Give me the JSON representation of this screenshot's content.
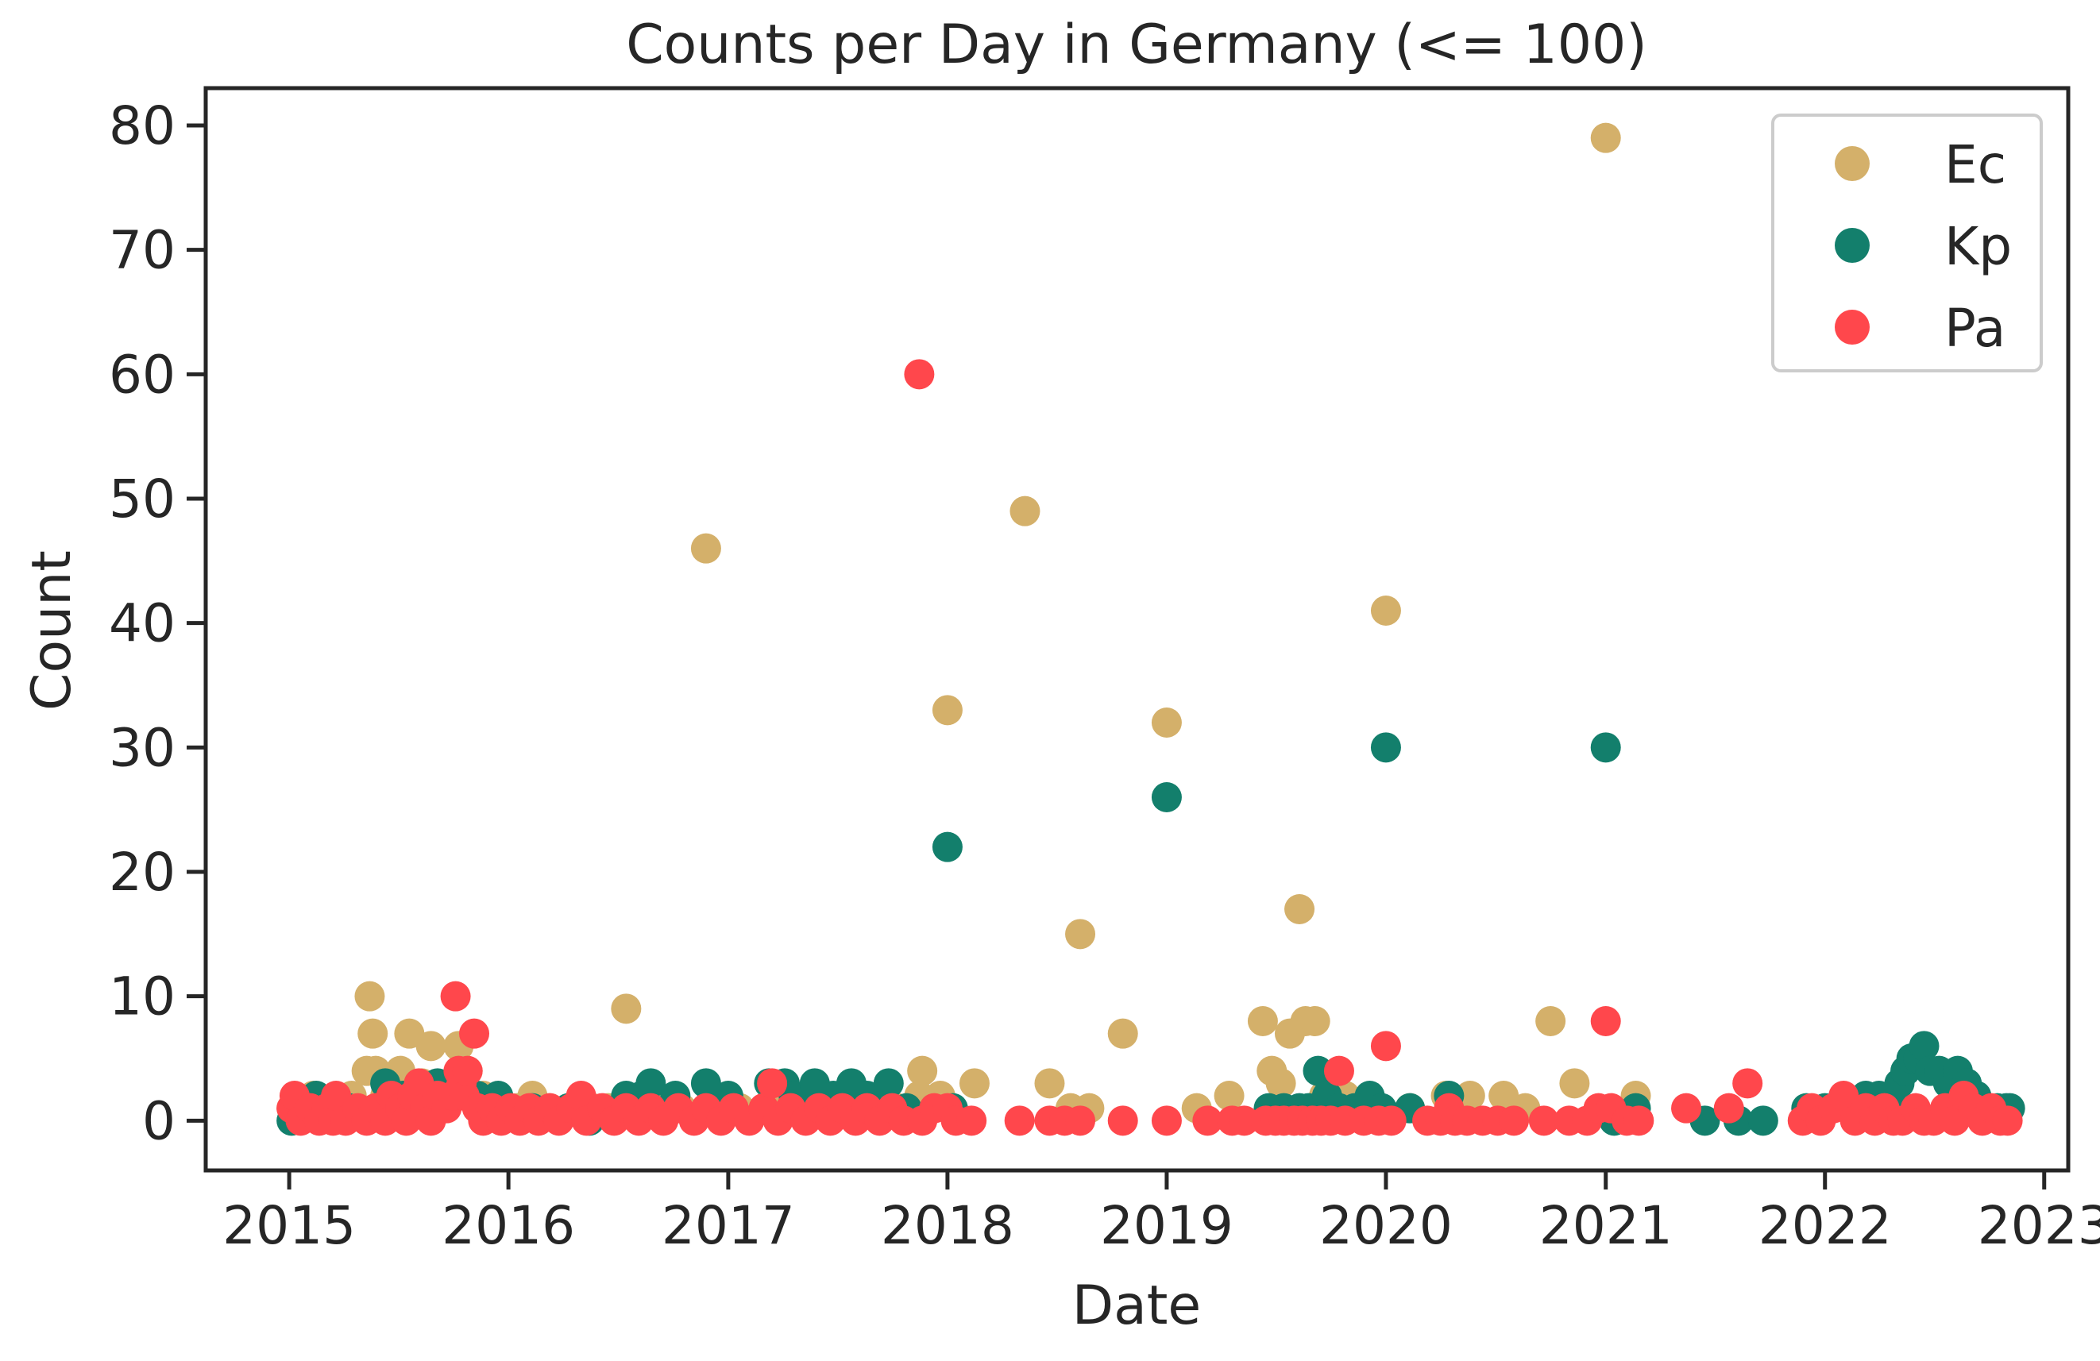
{
  "chart_data": {
    "type": "scatter",
    "title": "Counts per Day in Germany (<= 100)",
    "xlabel": "Date",
    "ylabel": "Count",
    "xlim": [
      "2014-08-15",
      "2023-02-10"
    ],
    "ylim": [
      -4,
      83
    ],
    "x_ticks": [
      "2015",
      "2016",
      "2017",
      "2018",
      "2019",
      "2020",
      "2021",
      "2022",
      "2023"
    ],
    "y_ticks": [
      0,
      10,
      20,
      30,
      40,
      50,
      60,
      70,
      80
    ],
    "grid": false,
    "legend_position": "top-right",
    "series": [
      {
        "name": "Ec",
        "color": "#d4b06a",
        "points": [
          [
            "2015-01-05",
            1
          ],
          [
            "2015-02-10",
            2
          ],
          [
            "2015-03-20",
            1
          ],
          [
            "2015-04-15",
            2
          ],
          [
            "2015-05-10",
            4
          ],
          [
            "2015-05-15",
            10
          ],
          [
            "2015-05-20",
            7
          ],
          [
            "2015-05-25",
            4
          ],
          [
            "2015-06-10",
            2
          ],
          [
            "2015-07-05",
            4
          ],
          [
            "2015-07-20",
            7
          ],
          [
            "2015-08-10",
            3
          ],
          [
            "2015-08-25",
            6
          ],
          [
            "2015-09-15",
            2
          ],
          [
            "2015-10-10",
            6
          ],
          [
            "2015-10-25",
            4
          ],
          [
            "2015-11-20",
            2
          ],
          [
            "2015-12-20",
            1
          ],
          [
            "2016-01-15",
            1
          ],
          [
            "2016-02-10",
            2
          ],
          [
            "2016-03-10",
            1
          ],
          [
            "2016-04-20",
            1
          ],
          [
            "2016-05-20",
            1
          ],
          [
            "2016-06-15",
            1
          ],
          [
            "2016-07-15",
            9
          ],
          [
            "2016-09-10",
            1
          ],
          [
            "2016-10-15",
            1
          ],
          [
            "2016-11-25",
            46
          ],
          [
            "2017-01-20",
            1
          ],
          [
            "2017-03-10",
            1
          ],
          [
            "2017-04-20",
            1
          ],
          [
            "2017-05-25",
            1
          ],
          [
            "2017-07-05",
            2
          ],
          [
            "2017-08-20",
            1
          ],
          [
            "2017-10-10",
            1
          ],
          [
            "2017-11-15",
            2
          ],
          [
            "2017-11-20",
            4
          ],
          [
            "2017-12-20",
            2
          ],
          [
            "2018-01-01",
            33
          ],
          [
            "2018-02-15",
            3
          ],
          [
            "2018-05-10",
            49
          ],
          [
            "2018-06-20",
            3
          ],
          [
            "2018-07-25",
            1
          ],
          [
            "2018-08-10",
            15
          ],
          [
            "2018-08-25",
            1
          ],
          [
            "2018-10-20",
            7
          ],
          [
            "2019-01-01",
            32
          ],
          [
            "2019-02-20",
            1
          ],
          [
            "2019-04-15",
            2
          ],
          [
            "2019-06-10",
            8
          ],
          [
            "2019-06-25",
            4
          ],
          [
            "2019-07-10",
            3
          ],
          [
            "2019-07-25",
            7
          ],
          [
            "2019-08-10",
            17
          ],
          [
            "2019-08-20",
            8
          ],
          [
            "2019-09-05",
            8
          ],
          [
            "2019-09-20",
            2
          ],
          [
            "2019-10-25",
            2
          ],
          [
            "2019-11-20",
            1
          ],
          [
            "2020-01-01",
            41
          ],
          [
            "2020-02-10",
            1
          ],
          [
            "2020-04-10",
            2
          ],
          [
            "2020-05-20",
            2
          ],
          [
            "2020-07-15",
            2
          ],
          [
            "2020-08-20",
            1
          ],
          [
            "2020-10-01",
            8
          ],
          [
            "2020-11-10",
            3
          ],
          [
            "2021-01-01",
            79
          ],
          [
            "2021-02-20",
            2
          ]
        ]
      },
      {
        "name": "Kp",
        "color": "#137f6c",
        "points": [
          [
            "2015-01-05",
            0
          ],
          [
            "2015-01-20",
            1
          ],
          [
            "2015-02-15",
            2
          ],
          [
            "2015-04-10",
            1
          ],
          [
            "2015-06-10",
            3
          ],
          [
            "2015-07-10",
            2
          ],
          [
            "2015-08-10",
            2
          ],
          [
            "2015-09-05",
            3
          ],
          [
            "2015-10-10",
            3
          ],
          [
            "2015-11-10",
            2
          ],
          [
            "2015-12-15",
            2
          ],
          [
            "2016-02-10",
            1
          ],
          [
            "2016-04-10",
            1
          ],
          [
            "2016-05-15",
            0
          ],
          [
            "2016-07-15",
            2
          ],
          [
            "2016-08-10",
            2
          ],
          [
            "2016-08-25",
            3
          ],
          [
            "2016-10-05",
            2
          ],
          [
            "2016-11-25",
            3
          ],
          [
            "2017-01-01",
            2
          ],
          [
            "2017-03-10",
            3
          ],
          [
            "2017-04-05",
            3
          ],
          [
            "2017-04-20",
            2
          ],
          [
            "2017-05-25",
            3
          ],
          [
            "2017-06-25",
            2
          ],
          [
            "2017-07-25",
            3
          ],
          [
            "2017-08-20",
            2
          ],
          [
            "2017-09-25",
            3
          ],
          [
            "2017-10-25",
            1
          ],
          [
            "2018-01-01",
            22
          ],
          [
            "2018-01-10",
            1
          ],
          [
            "2019-01-01",
            26
          ],
          [
            "2019-06-20",
            1
          ],
          [
            "2019-07-15",
            1
          ],
          [
            "2019-08-10",
            1
          ],
          [
            "2019-08-25",
            1
          ],
          [
            "2019-09-10",
            4
          ],
          [
            "2019-09-25",
            2
          ],
          [
            "2019-10-15",
            1
          ],
          [
            "2019-11-10",
            1
          ],
          [
            "2019-12-05",
            2
          ],
          [
            "2019-12-25",
            1
          ],
          [
            "2020-01-01",
            30
          ],
          [
            "2020-02-10",
            1
          ],
          [
            "2020-04-15",
            2
          ],
          [
            "2021-01-01",
            30
          ],
          [
            "2021-01-15",
            0
          ],
          [
            "2021-02-20",
            1
          ],
          [
            "2021-06-15",
            0
          ],
          [
            "2021-08-10",
            0
          ],
          [
            "2021-09-20",
            0
          ],
          [
            "2021-12-01",
            1
          ],
          [
            "2022-01-01",
            1
          ],
          [
            "2022-02-10",
            1
          ],
          [
            "2022-03-10",
            2
          ],
          [
            "2022-04-01",
            2
          ],
          [
            "2022-04-20",
            2
          ],
          [
            "2022-05-05",
            3
          ],
          [
            "2022-05-15",
            4
          ],
          [
            "2022-05-25",
            5
          ],
          [
            "2022-06-05",
            5
          ],
          [
            "2022-06-15",
            6
          ],
          [
            "2022-06-25",
            4
          ],
          [
            "2022-07-10",
            4
          ],
          [
            "2022-07-25",
            3
          ],
          [
            "2022-08-10",
            4
          ],
          [
            "2022-08-25",
            3
          ],
          [
            "2022-09-10",
            2
          ],
          [
            "2022-09-25",
            1
          ],
          [
            "2022-10-15",
            1
          ],
          [
            "2022-10-30",
            1
          ],
          [
            "2022-11-05",
            1
          ]
        ]
      },
      {
        "name": "Pa",
        "color": "#ff474c",
        "points": [
          [
            "2015-01-05",
            1
          ],
          [
            "2015-01-10",
            2
          ],
          [
            "2015-01-20",
            0
          ],
          [
            "2015-02-05",
            1
          ],
          [
            "2015-02-20",
            0
          ],
          [
            "2015-03-05",
            1
          ],
          [
            "2015-03-15",
            0
          ],
          [
            "2015-03-20",
            2
          ],
          [
            "2015-04-05",
            0
          ],
          [
            "2015-04-25",
            1
          ],
          [
            "2015-05-10",
            0
          ],
          [
            "2015-05-25",
            1
          ],
          [
            "2015-06-10",
            0
          ],
          [
            "2015-06-20",
            2
          ],
          [
            "2015-07-05",
            1
          ],
          [
            "2015-07-15",
            0
          ],
          [
            "2015-07-25",
            2
          ],
          [
            "2015-08-05",
            3
          ],
          [
            "2015-08-15",
            1
          ],
          [
            "2015-08-25",
            0
          ],
          [
            "2015-09-05",
            2
          ],
          [
            "2015-09-20",
            1
          ],
          [
            "2015-10-01",
            2
          ],
          [
            "2015-10-05",
            10
          ],
          [
            "2015-10-10",
            4
          ],
          [
            "2015-10-15",
            3
          ],
          [
            "2015-10-20",
            2
          ],
          [
            "2015-10-25",
            4
          ],
          [
            "2015-11-05",
            7
          ],
          [
            "2015-11-10",
            1
          ],
          [
            "2015-11-20",
            0
          ],
          [
            "2015-12-05",
            1
          ],
          [
            "2015-12-20",
            0
          ],
          [
            "2016-01-05",
            1
          ],
          [
            "2016-01-20",
            0
          ],
          [
            "2016-02-05",
            1
          ],
          [
            "2016-02-20",
            0
          ],
          [
            "2016-03-10",
            1
          ],
          [
            "2016-03-25",
            0
          ],
          [
            "2016-04-15",
            1
          ],
          [
            "2016-05-01",
            2
          ],
          [
            "2016-05-10",
            0
          ],
          [
            "2016-06-05",
            1
          ],
          [
            "2016-06-25",
            0
          ],
          [
            "2016-07-15",
            1
          ],
          [
            "2016-08-05",
            0
          ],
          [
            "2016-08-25",
            1
          ],
          [
            "2016-09-15",
            0
          ],
          [
            "2016-10-10",
            1
          ],
          [
            "2016-11-05",
            0
          ],
          [
            "2016-11-25",
            1
          ],
          [
            "2016-12-20",
            0
          ],
          [
            "2017-01-10",
            1
          ],
          [
            "2017-02-05",
            0
          ],
          [
            "2017-03-01",
            1
          ],
          [
            "2017-03-15",
            3
          ],
          [
            "2017-03-25",
            0
          ],
          [
            "2017-04-15",
            1
          ],
          [
            "2017-05-10",
            0
          ],
          [
            "2017-06-01",
            1
          ],
          [
            "2017-06-20",
            0
          ],
          [
            "2017-07-10",
            1
          ],
          [
            "2017-08-01",
            0
          ],
          [
            "2017-08-20",
            1
          ],
          [
            "2017-09-10",
            0
          ],
          [
            "2017-10-01",
            1
          ],
          [
            "2017-10-20",
            0
          ],
          [
            "2017-11-15",
            60
          ],
          [
            "2017-11-20",
            0
          ],
          [
            "2017-12-10",
            1
          ],
          [
            "2018-01-01",
            1
          ],
          [
            "2018-01-15",
            0
          ],
          [
            "2018-02-10",
            0
          ],
          [
            "2018-05-01",
            0
          ],
          [
            "2018-06-20",
            0
          ],
          [
            "2018-07-15",
            0
          ],
          [
            "2018-08-10",
            0
          ],
          [
            "2018-10-20",
            0
          ],
          [
            "2019-01-01",
            0
          ],
          [
            "2019-03-10",
            0
          ],
          [
            "2019-04-20",
            0
          ],
          [
            "2019-05-10",
            0
          ],
          [
            "2019-06-15",
            0
          ],
          [
            "2019-07-01",
            0
          ],
          [
            "2019-07-15",
            0
          ],
          [
            "2019-08-01",
            0
          ],
          [
            "2019-08-15",
            0
          ],
          [
            "2019-09-01",
            0
          ],
          [
            "2019-09-15",
            0
          ],
          [
            "2019-10-01",
            0
          ],
          [
            "2019-10-15",
            4
          ],
          [
            "2019-10-25",
            0
          ],
          [
            "2019-11-25",
            0
          ],
          [
            "2019-12-20",
            0
          ],
          [
            "2020-01-01",
            6
          ],
          [
            "2020-01-10",
            0
          ],
          [
            "2020-03-10",
            0
          ],
          [
            "2020-04-01",
            0
          ],
          [
            "2020-04-15",
            1
          ],
          [
            "2020-04-25",
            0
          ],
          [
            "2020-05-15",
            0
          ],
          [
            "2020-06-10",
            0
          ],
          [
            "2020-07-05",
            0
          ],
          [
            "2020-08-01",
            0
          ],
          [
            "2020-09-20",
            0
          ],
          [
            "2020-11-01",
            0
          ],
          [
            "2020-12-01",
            0
          ],
          [
            "2020-12-20",
            1
          ],
          [
            "2021-01-01",
            8
          ],
          [
            "2021-01-10",
            1
          ],
          [
            "2021-02-05",
            0
          ],
          [
            "2021-02-25",
            0
          ],
          [
            "2021-05-15",
            1
          ],
          [
            "2021-07-25",
            1
          ],
          [
            "2021-08-25",
            3
          ],
          [
            "2021-11-25",
            0
          ],
          [
            "2021-12-10",
            1
          ],
          [
            "2021-12-25",
            0
          ],
          [
            "2022-01-15",
            1
          ],
          [
            "2022-02-01",
            2
          ],
          [
            "2022-02-20",
            0
          ],
          [
            "2022-03-10",
            1
          ],
          [
            "2022-03-25",
            0
          ],
          [
            "2022-04-10",
            1
          ],
          [
            "2022-04-25",
            0
          ],
          [
            "2022-05-10",
            0
          ],
          [
            "2022-06-01",
            1
          ],
          [
            "2022-06-15",
            0
          ],
          [
            "2022-07-01",
            0
          ],
          [
            "2022-07-20",
            1
          ],
          [
            "2022-08-05",
            0
          ],
          [
            "2022-08-20",
            2
          ],
          [
            "2022-09-05",
            1
          ],
          [
            "2022-09-20",
            0
          ],
          [
            "2022-10-05",
            1
          ],
          [
            "2022-10-20",
            0
          ],
          [
            "2022-11-01",
            0
          ]
        ]
      }
    ]
  }
}
